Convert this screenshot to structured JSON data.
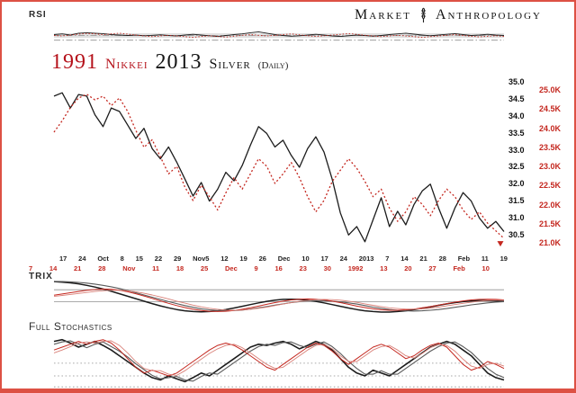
{
  "labels": {
    "rsi": "RSI",
    "trix": "TRIX",
    "stoch": "Full Stochastics"
  },
  "brand": {
    "left": "Market",
    "right": "Anthropology",
    "icon": "dna-emblem"
  },
  "title": {
    "red_year": "1991",
    "red_name": "Nikkei",
    "black_year": "2013",
    "black_name": "Silver",
    "suffix": "(Daily)"
  },
  "axes": {
    "silver": [
      "35.0",
      "34.5",
      "34.0",
      "33.5",
      "33.0",
      "32.5",
      "32.0",
      "31.5",
      "31.0",
      "30.5"
    ],
    "nikkei": [
      "25.0K",
      "24.5K",
      "24.0K",
      "23.5K",
      "23.0K",
      "22.5K",
      "22.0K",
      "21.5K",
      "21.0K"
    ],
    "x_black": [
      "17",
      "24",
      "Oct",
      "8",
      "15",
      "22",
      "29",
      "Nov5",
      "12",
      "19",
      "26",
      "Dec",
      "10",
      "17",
      "24",
      "2013",
      "7",
      "14",
      "21",
      "28",
      "Feb",
      "11",
      "19"
    ],
    "x_red": [
      "7",
      "14",
      "21",
      "28",
      "Nov",
      "11",
      "18",
      "25",
      "Dec",
      "9",
      "16",
      "23",
      "30",
      "1992",
      "13",
      "20",
      "27",
      "Feb",
      "10"
    ]
  },
  "colors": {
    "black": "#1c1c1c",
    "gray": "#5a5a5a",
    "red": "#c4271f",
    "lightred": "#d98078",
    "grid": "#8f8f8f",
    "band": "#dcdcdc",
    "title_red": "#b5121b",
    "border": "#dd5144"
  },
  "chart_data": [
    {
      "id": "rsi",
      "type": "line",
      "title": "RSI",
      "ylim": [
        0,
        100
      ],
      "band": {
        "from": 38,
        "to": 58
      },
      "hlines": [
        {
          "y": 48,
          "style": "dashdot"
        },
        {
          "y": 28,
          "style": "dashdot"
        }
      ],
      "series": [
        {
          "name": "rsi-silver-2013",
          "color": "black",
          "width": 0.9,
          "values": [
            52,
            55,
            50,
            58,
            60,
            58,
            56,
            52,
            50,
            48,
            50,
            47,
            49,
            51,
            48,
            46,
            50,
            53,
            50,
            47,
            44,
            48,
            52,
            55,
            60,
            64,
            58,
            52,
            48,
            45,
            47,
            50,
            53,
            50,
            46,
            44,
            47,
            50,
            48,
            45,
            48,
            52,
            55,
            58,
            54,
            50,
            47,
            50,
            53,
            56,
            52,
            48,
            50,
            53,
            50,
            48
          ]
        },
        {
          "name": "rsi-nikkei-1991",
          "color": "red",
          "width": 0.9,
          "dash": "1.5 2",
          "values": [
            48,
            46,
            50,
            54,
            57,
            55,
            52,
            55,
            58,
            54,
            50,
            46,
            43,
            46,
            49,
            46,
            43,
            40,
            44,
            47,
            44,
            41,
            45,
            49,
            52,
            49,
            46,
            49,
            52,
            55,
            51,
            47,
            44,
            47,
            50,
            53,
            56,
            53,
            49,
            46,
            43,
            46,
            49,
            46,
            43,
            40,
            43,
            46,
            49,
            52,
            48,
            45,
            42,
            45,
            47,
            44
          ]
        }
      ]
    },
    {
      "id": "main",
      "type": "line",
      "title": "1991 Nikkei vs 2013 Silver (Daily)",
      "y_ticks_right_silver": [
        "35.0",
        "34.5",
        "34.0",
        "33.5",
        "33.0",
        "32.5",
        "32.0",
        "31.5",
        "31.0",
        "30.5"
      ],
      "y_ticks_right_nikkei": [
        "25.0K",
        "24.5K",
        "24.0K",
        "23.5K",
        "23.0K",
        "22.5K",
        "22.0K",
        "21.5K",
        "21.0K"
      ],
      "series": [
        {
          "name": "silver-2013",
          "color": "black",
          "width": 1.3,
          "ylim": [
            30.2,
            35.3
          ],
          "values": [
            34.85,
            34.95,
            34.5,
            34.9,
            34.85,
            34.3,
            33.95,
            34.5,
            34.4,
            34.0,
            33.6,
            33.9,
            33.3,
            33.0,
            33.35,
            32.9,
            32.4,
            31.9,
            32.3,
            31.75,
            32.1,
            32.6,
            32.35,
            32.8,
            33.4,
            33.95,
            33.75,
            33.35,
            33.55,
            33.1,
            32.75,
            33.3,
            33.65,
            33.2,
            32.4,
            31.4,
            30.75,
            31.0,
            30.55,
            31.2,
            31.85,
            31.0,
            31.45,
            31.05,
            31.65,
            32.05,
            32.25,
            31.55,
            30.95,
            31.55,
            32.0,
            31.75,
            31.25,
            30.95,
            31.15,
            30.85
          ]
        },
        {
          "name": "nikkei-1991",
          "color": "red",
          "width": 1.3,
          "dash": "2 2.4",
          "ylim": [
            20.8,
            25.35
          ],
          "end_marker": "arrow-down",
          "values": [
            24.0,
            24.3,
            24.65,
            24.9,
            25.0,
            24.85,
            24.95,
            24.7,
            24.9,
            24.55,
            24.05,
            23.6,
            23.8,
            23.35,
            22.9,
            23.1,
            22.55,
            22.2,
            22.6,
            22.3,
            21.95,
            22.4,
            22.8,
            22.5,
            22.9,
            23.3,
            23.1,
            22.65,
            22.9,
            23.2,
            22.8,
            22.3,
            21.9,
            22.2,
            22.7,
            23.0,
            23.3,
            23.05,
            22.7,
            22.3,
            22.5,
            22.0,
            21.65,
            21.9,
            22.3,
            22.1,
            21.8,
            22.2,
            22.5,
            22.3,
            21.95,
            21.7,
            21.9,
            21.6,
            21.4,
            21.2
          ]
        }
      ]
    },
    {
      "id": "trix",
      "type": "line",
      "title": "TRIX",
      "ylim": [
        -0.6,
        1.0
      ],
      "hlines": [
        {
          "y": 0.52,
          "style": "solid"
        },
        {
          "y": 0.04,
          "style": "solid"
        }
      ],
      "series": [
        {
          "name": "trix-silver",
          "color": "black",
          "width": 1.5,
          "values": [
            0.85,
            0.83,
            0.8,
            0.76,
            0.7,
            0.63,
            0.55,
            0.46,
            0.36,
            0.26,
            0.16,
            0.06,
            -0.04,
            -0.13,
            -0.21,
            -0.28,
            -0.33,
            -0.36,
            -0.37,
            -0.36,
            -0.33,
            -0.28,
            -0.22,
            -0.15,
            -0.08,
            -0.01,
            0.05,
            0.1,
            0.13,
            0.14,
            0.13,
            0.1,
            0.05,
            -0.01,
            -0.08,
            -0.15,
            -0.22,
            -0.28,
            -0.33,
            -0.36,
            -0.38,
            -0.38,
            -0.36,
            -0.33,
            -0.28,
            -0.23,
            -0.17,
            -0.11,
            -0.05,
            0.0,
            0.04,
            0.07,
            0.08,
            0.08,
            0.07,
            0.05
          ]
        },
        {
          "name": "trix-silver-signal",
          "color": "gray",
          "width": 1.1,
          "values": [
            0.86,
            0.85,
            0.84,
            0.82,
            0.79,
            0.75,
            0.7,
            0.64,
            0.57,
            0.49,
            0.4,
            0.31,
            0.22,
            0.13,
            0.04,
            -0.04,
            -0.12,
            -0.19,
            -0.25,
            -0.29,
            -0.32,
            -0.33,
            -0.32,
            -0.3,
            -0.26,
            -0.21,
            -0.16,
            -0.1,
            -0.05,
            0.0,
            0.04,
            0.07,
            0.08,
            0.08,
            0.06,
            0.03,
            -0.01,
            -0.06,
            -0.12,
            -0.18,
            -0.23,
            -0.28,
            -0.31,
            -0.33,
            -0.34,
            -0.33,
            -0.31,
            -0.28,
            -0.24,
            -0.19,
            -0.14,
            -0.09,
            -0.05,
            -0.01,
            0.02,
            0.04
          ]
        },
        {
          "name": "trix-nikkei",
          "color": "red",
          "width": 1.0,
          "values": [
            0.3,
            0.35,
            0.4,
            0.45,
            0.5,
            0.53,
            0.55,
            0.54,
            0.5,
            0.44,
            0.36,
            0.27,
            0.17,
            0.07,
            -0.03,
            -0.12,
            -0.2,
            -0.27,
            -0.32,
            -0.35,
            -0.36,
            -0.35,
            -0.32,
            -0.27,
            -0.21,
            -0.14,
            -0.07,
            0.0,
            0.06,
            0.11,
            0.14,
            0.15,
            0.14,
            0.11,
            0.06,
            0.0,
            -0.07,
            -0.14,
            -0.2,
            -0.25,
            -0.29,
            -0.31,
            -0.31,
            -0.29,
            -0.26,
            -0.21,
            -0.16,
            -0.1,
            -0.04,
            0.02,
            0.07,
            0.11,
            0.13,
            0.14,
            0.13,
            0.11
          ]
        },
        {
          "name": "trix-nikkei-signal",
          "color": "lightred",
          "width": 0.9,
          "values": [
            0.25,
            0.29,
            0.33,
            0.37,
            0.41,
            0.45,
            0.48,
            0.5,
            0.5,
            0.48,
            0.44,
            0.38,
            0.31,
            0.23,
            0.15,
            0.06,
            -0.02,
            -0.1,
            -0.17,
            -0.23,
            -0.27,
            -0.3,
            -0.31,
            -0.3,
            -0.27,
            -0.23,
            -0.18,
            -0.12,
            -0.06,
            0.0,
            0.05,
            0.09,
            0.12,
            0.13,
            0.12,
            0.1,
            0.06,
            0.01,
            -0.05,
            -0.11,
            -0.16,
            -0.21,
            -0.24,
            -0.26,
            -0.26,
            -0.25,
            -0.22,
            -0.18,
            -0.13,
            -0.08,
            -0.03,
            0.02,
            0.06,
            0.09,
            0.1,
            0.1
          ]
        }
      ]
    },
    {
      "id": "stoch",
      "type": "line",
      "title": "Full Stochastics",
      "ylim": [
        0,
        100
      ],
      "hlines": [
        {
          "y": 47,
          "style": "dot"
        },
        {
          "y": 25,
          "style": "dot"
        },
        {
          "y": 6,
          "style": "dot"
        }
      ],
      "series": [
        {
          "name": "stoch-silver-k",
          "color": "black",
          "width": 1.6,
          "values": [
            85,
            88,
            82,
            75,
            80,
            85,
            78,
            70,
            60,
            50,
            40,
            30,
            22,
            18,
            25,
            20,
            15,
            22,
            30,
            25,
            35,
            45,
            55,
            65,
            75,
            80,
            78,
            82,
            85,
            80,
            72,
            78,
            85,
            80,
            70,
            55,
            40,
            30,
            25,
            35,
            30,
            25,
            35,
            45,
            55,
            65,
            75,
            80,
            85,
            80,
            70,
            60,
            45,
            30,
            22,
            18
          ]
        },
        {
          "name": "stoch-silver-d",
          "color": "gray",
          "width": 1.1,
          "values": [
            80,
            84,
            86,
            80,
            74,
            80,
            84,
            76,
            68,
            58,
            46,
            36,
            26,
            20,
            22,
            24,
            18,
            16,
            24,
            30,
            28,
            38,
            48,
            58,
            68,
            76,
            80,
            78,
            83,
            84,
            78,
            74,
            80,
            84,
            76,
            64,
            50,
            38,
            28,
            28,
            34,
            28,
            28,
            38,
            48,
            58,
            68,
            76,
            82,
            84,
            76,
            66,
            52,
            38,
            28,
            22
          ]
        },
        {
          "name": "stoch-nikkei-k",
          "color": "red",
          "width": 1.0,
          "values": [
            70,
            75,
            80,
            85,
            80,
            85,
            88,
            82,
            70,
            55,
            40,
            30,
            35,
            30,
            25,
            30,
            40,
            50,
            60,
            70,
            78,
            82,
            78,
            70,
            60,
            50,
            40,
            35,
            45,
            55,
            65,
            75,
            82,
            78,
            68,
            55,
            45,
            55,
            65,
            75,
            80,
            75,
            65,
            55,
            60,
            70,
            78,
            82,
            75,
            60,
            45,
            35,
            40,
            50,
            45,
            38
          ]
        },
        {
          "name": "stoch-nikkei-d",
          "color": "lightred",
          "width": 0.9,
          "values": [
            65,
            70,
            76,
            82,
            84,
            82,
            85,
            86,
            78,
            65,
            50,
            38,
            34,
            34,
            28,
            26,
            34,
            44,
            54,
            64,
            72,
            78,
            80,
            74,
            65,
            55,
            45,
            38,
            40,
            50,
            60,
            70,
            78,
            80,
            72,
            60,
            50,
            50,
            60,
            70,
            76,
            78,
            70,
            60,
            56,
            64,
            74,
            80,
            78,
            68,
            54,
            42,
            38,
            45,
            47,
            42
          ]
        }
      ]
    }
  ]
}
